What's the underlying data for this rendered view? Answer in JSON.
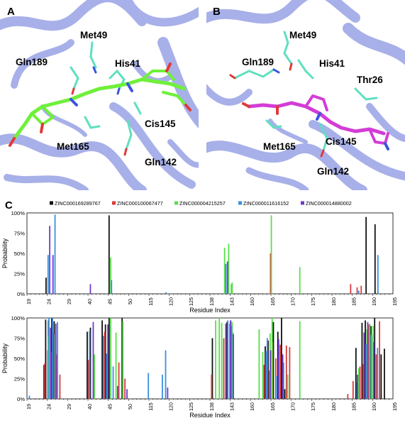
{
  "panels": [
    {
      "letter": "A",
      "residues": [
        "Met49",
        "Gln189",
        "His41",
        "Cis145",
        "Met165",
        "Gln142"
      ]
    },
    {
      "letter": "B",
      "residues": [
        "Met49",
        "Gln189",
        "His41",
        "Thr26",
        "Met165",
        "Cis145",
        "Gln142"
      ]
    }
  ],
  "chart_panel_letter": "C",
  "colors": {
    "ZINC000169289767": "#111111",
    "ZINC000100067477": "#d93a3a",
    "ZINC000004215257": "#58e04a",
    "ZINC000011616152": "#3a8fe0",
    "ZINC000014880002": "#6f3ac9",
    "ribbon": "#9aa3e6",
    "ribbon_dark": "#6f78d6",
    "carbon_ligand_a": "#6ff03a",
    "carbon_ligand_b": "#d33cd6",
    "carbon_residue": "#5fe0c0"
  },
  "chart_data": [
    {
      "type": "bar",
      "xlabel": "Residue Index",
      "ylabel": "Probability",
      "yticks": [
        "0%",
        "25%",
        "50%",
        "75%",
        "100%"
      ],
      "ylim": [
        0,
        100
      ],
      "xticks": [
        "19",
        "24",
        "29",
        "40",
        "45",
        "50",
        "115",
        "120",
        "125",
        "138",
        "143",
        "160",
        "165",
        "170",
        "175",
        "180",
        "185",
        "190",
        "195"
      ],
      "series": [
        {
          "name": "ZINC000169289767",
          "bars": [
            [
              23.7,
              20
            ],
            [
              45.2,
              97
            ],
            [
              188.4,
              95
            ],
            [
              190.6,
              86
            ]
          ]
        },
        {
          "name": "ZINC000100067477",
          "bars": [
            [
              164.9,
              50
            ],
            [
              184.6,
              12
            ],
            [
              186.2,
              8
            ],
            [
              187.2,
              10
            ]
          ]
        },
        {
          "name": "ZINC000004215257",
          "bars": [
            [
              45.6,
              45
            ],
            [
              141.6,
              57
            ],
            [
              142.6,
              62
            ],
            [
              143.8,
              12
            ],
            [
              144.6,
              14
            ],
            [
              165.1,
              97
            ],
            [
              172.1,
              33
            ]
          ]
        },
        {
          "name": "ZINC000011616152",
          "bars": [
            [
              24.2,
              48
            ],
            [
              25.9,
              98
            ],
            [
              45.8,
              17
            ],
            [
              119.2,
              2
            ],
            [
              141.9,
              37
            ],
            [
              186.6,
              4
            ],
            [
              191.3,
              48
            ]
          ]
        },
        {
          "name": "ZINC000014880002",
          "bars": [
            [
              24.6,
              84
            ],
            [
              25.4,
              48
            ],
            [
              40.6,
              12
            ],
            [
              142.3,
              40
            ]
          ]
        }
      ]
    },
    {
      "type": "bar",
      "xlabel": "Residue Index",
      "ylabel": "Probability",
      "yticks": [
        "0%",
        "25%",
        "50%",
        "75%",
        "100%"
      ],
      "ylim": [
        0,
        100
      ],
      "xticks": [
        "19",
        "24",
        "29",
        "40",
        "45",
        "50",
        "115",
        "120",
        "125",
        "138",
        "143",
        "160",
        "165",
        "170",
        "175",
        "180",
        "185",
        "190",
        "195"
      ],
      "series": [
        {
          "name": "ZINC000169289767",
          "bars": [
            [
              23.2,
              42
            ],
            [
              23.6,
              98
            ],
            [
              24.3,
              97
            ],
            [
              25.1,
              100
            ],
            [
              25.7,
              96
            ],
            [
              39.6,
              83
            ],
            [
              40.6,
              88
            ],
            [
              43.5,
              97
            ],
            [
              44.3,
              92
            ],
            [
              45.2,
              100
            ],
            [
              48.4,
              100
            ],
            [
              138.6,
              75
            ],
            [
              142.2,
              95
            ],
            [
              143.9,
              92
            ],
            [
              163.6,
              65
            ],
            [
              164.3,
              72
            ],
            [
              165.6,
              95
            ],
            [
              166.7,
              83
            ],
            [
              167.6,
              100
            ],
            [
              168.4,
              12
            ],
            [
              185.9,
              63
            ],
            [
              187.4,
              94
            ],
            [
              188.2,
              97
            ],
            [
              189.6,
              90
            ],
            [
              190.5,
              100
            ],
            [
              192.1,
              55
            ],
            [
              192.9,
              62
            ]
          ]
        },
        {
          "name": "ZINC000100067477",
          "bars": [
            [
              23.4,
              44
            ],
            [
              24.1,
              60
            ],
            [
              24.9,
              58
            ],
            [
              26.3,
              55
            ],
            [
              27.1,
              30
            ],
            [
              40.1,
              48
            ],
            [
              40.4,
              20
            ],
            [
              44.1,
              83
            ],
            [
              47.6,
              45
            ],
            [
              49.1,
              25
            ],
            [
              138.4,
              30
            ],
            [
              141.4,
              75
            ],
            [
              163.3,
              42
            ],
            [
              164.6,
              35
            ],
            [
              165.4,
              70
            ],
            [
              166.2,
              50
            ],
            [
              167.3,
              67
            ],
            [
              168.8,
              66
            ],
            [
              169.6,
              64
            ],
            [
              183.9,
              6
            ],
            [
              185.2,
              22
            ],
            [
              186.9,
              40
            ],
            [
              187.7,
              43
            ],
            [
              189.1,
              92
            ],
            [
              190.9,
              55
            ],
            [
              191.7,
              96
            ]
          ]
        },
        {
          "name": "ZINC000004215257",
          "bars": [
            [
              24.2,
              77
            ],
            [
              25.9,
              79
            ],
            [
              41.6,
              55
            ],
            [
              45.6,
              100
            ],
            [
              46.9,
              82
            ],
            [
              48.6,
              96
            ],
            [
              139.4,
              97
            ],
            [
              140.3,
              100
            ],
            [
              140.9,
              94
            ],
            [
              143.6,
              97
            ],
            [
              144.6,
              95
            ],
            [
              145.4,
              82
            ],
            [
              162.1,
              86
            ],
            [
              163.0,
              58
            ],
            [
              164.8,
              81
            ],
            [
              165.3,
              100
            ],
            [
              169.1,
              30
            ],
            [
              172.1,
              96
            ],
            [
              186.6,
              38
            ],
            [
              188.6,
              86
            ],
            [
              189.3,
              93
            ],
            [
              190.1,
              90
            ]
          ]
        },
        {
          "name": "ZINC000011616152",
          "bars": [
            [
              19.6,
              4
            ],
            [
              24.4,
              100
            ],
            [
              25.3,
              100
            ],
            [
              26.5,
              95
            ],
            [
              40.4,
              84
            ],
            [
              43.8,
              78
            ],
            [
              44.6,
              56
            ],
            [
              46.2,
              40
            ],
            [
              113.1,
              32
            ],
            [
              118.3,
              30
            ],
            [
              119.1,
              60
            ],
            [
              142.4,
              97
            ],
            [
              142.9,
              93
            ],
            [
              144.1,
              90
            ],
            [
              163.8,
              59
            ],
            [
              164.1,
              75
            ],
            [
              166.3,
              28
            ],
            [
              168.1,
              45
            ],
            [
              186.2,
              20
            ],
            [
              188.4,
              68
            ],
            [
              189.7,
              79
            ],
            [
              191.2,
              63
            ]
          ]
        },
        {
          "name": "ZINC000014880002",
          "bars": [
            [
              24.8,
              88
            ],
            [
              25.6,
              80
            ],
            [
              26.1,
              93
            ],
            [
              41.3,
              95
            ],
            [
              44.9,
              92
            ],
            [
              47.3,
              16
            ],
            [
              49.6,
              12
            ],
            [
              119.6,
              14
            ],
            [
              141.9,
              93
            ],
            [
              143.2,
              97
            ],
            [
              145.6,
              80
            ],
            [
              164.9,
              60
            ],
            [
              166.9,
              74
            ],
            [
              167.9,
              55
            ],
            [
              186.3,
              30
            ],
            [
              187.9,
              82
            ],
            [
              188.8,
              95
            ],
            [
              190.3,
              70
            ]
          ]
        }
      ]
    }
  ]
}
